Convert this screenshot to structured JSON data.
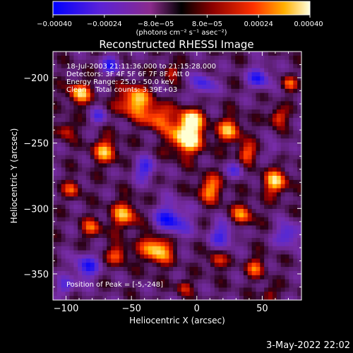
{
  "chart_data": {
    "type": "heatmap",
    "title": "Reconstructed RHESSI Image",
    "xlabel": "Heliocentric X (arcsec)",
    "ylabel": "Heliocentric Y (arcsec)",
    "xlim": [
      -110,
      80
    ],
    "ylim": [
      -370,
      -180
    ],
    "x_ticks": [
      -100,
      -50,
      0,
      50
    ],
    "y_ticks": [
      -200,
      -250,
      -300,
      -350
    ],
    "x_tick_labels": [
      "−100",
      "−50",
      "0",
      "50"
    ],
    "y_tick_labels": [
      "−200",
      "−250",
      "−300",
      "−350"
    ],
    "colorbar": {
      "range": [
        -0.0004,
        0.0004
      ],
      "tick_labels": [
        "−0.00040",
        "−0.00024",
        "−8.0e−05",
        "8.0e−05",
        "0.00024",
        "0.00040"
      ],
      "units": "(photons cm⁻² s⁻¹ asec⁻²)",
      "colors": [
        "#0000ff",
        "#6020d0",
        "#8a2b8c",
        "#000000",
        "#8b0000",
        "#ff3000",
        "#ffb000",
        "#ffffd0"
      ]
    },
    "annotations": [
      "18-Jul-2003 21:11:36.000 to 21:15:28.000",
      "Detectors: 3F 4F 5F 6F 7F 8F, Att 0",
      "Energy Range: 25.0 - 50.0 keV",
      "Clean    Total counts: 3.39E+03"
    ],
    "peak_label": "Position of Peak = [-5,-248]",
    "peak": [
      -5,
      -248
    ]
  },
  "footer": {
    "date": "3-May-2022 22:02"
  }
}
